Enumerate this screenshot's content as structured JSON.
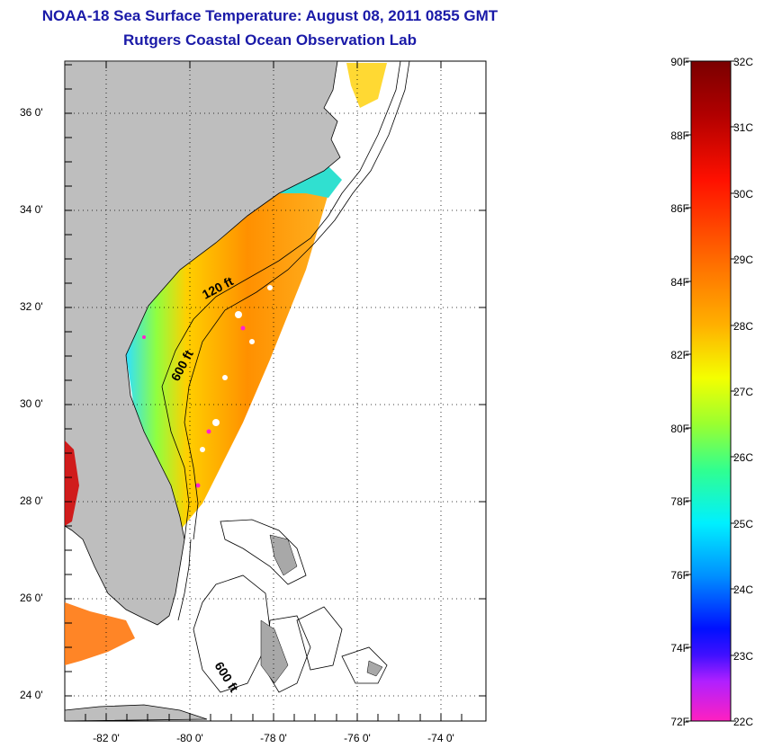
{
  "title": "NOAA-18 Sea Surface Temperature:  August 08, 2011 0855 GMT",
  "subtitle": "Rutgers Coastal Ocean Observation Lab",
  "map": {
    "lat_range": [
      23,
      37
    ],
    "lon_range": [
      -83,
      -73
    ],
    "lat_ticks": [
      "36 0'",
      "34 0'",
      "32 0'",
      "30 0'",
      "28 0'",
      "26 0'",
      "24 0'"
    ],
    "lon_ticks": [
      "-82 0'",
      "-80 0'",
      "-78 0'",
      "-76 0'",
      "-74 0'"
    ],
    "contour_labels": [
      "120 ft",
      "600 ft",
      "600 ft"
    ],
    "land_color": "#bebebe",
    "grid": true
  },
  "colorbar": {
    "fahrenheit_labels": [
      "90F",
      "88F",
      "86F",
      "84F",
      "82F",
      "80F",
      "78F",
      "76F",
      "74F",
      "72F"
    ],
    "celsius_labels": [
      "32C",
      "31C",
      "30C",
      "29C",
      "28C",
      "27C",
      "26C",
      "25C",
      "24C",
      "23C",
      "22C"
    ],
    "colors": [
      "#7a0000",
      "#d40000",
      "#ff3000",
      "#ff8a00",
      "#ffd000",
      "#e8ff00",
      "#7aff40",
      "#00ffb0",
      "#00e0ff",
      "#0080ff",
      "#0010ff",
      "#8020ff",
      "#ff20e0",
      "#ff20c0"
    ]
  }
}
